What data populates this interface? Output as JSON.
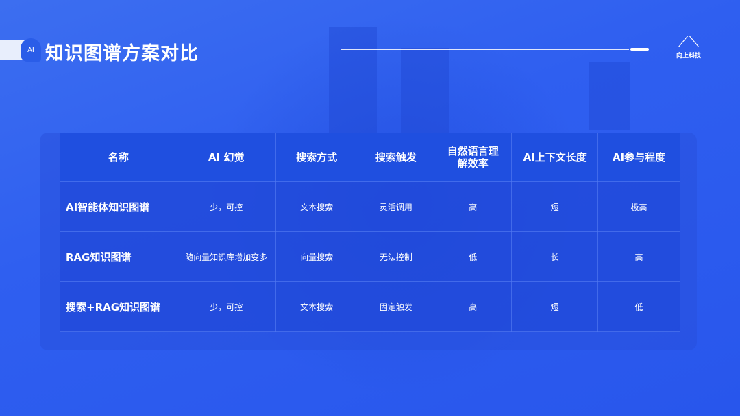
{
  "header": {
    "title": "知识图谱方案对比",
    "icon_text": "AI"
  },
  "logo": {
    "text": "向上科技"
  },
  "table": {
    "columns": [
      "名称",
      "AI 幻觉",
      "搜索方式",
      "搜索触发",
      "自然语言理解效率",
      "AI上下文长度",
      "AI参与程度"
    ],
    "rows": [
      [
        "AI智能体知识图谱",
        "少，可控",
        "文本搜索",
        "灵活调用",
        "高",
        "短",
        "极高"
      ],
      [
        "RAG知识图谱",
        "随向量知识库增加变多",
        "向量搜索",
        "无法控制",
        "低",
        "长",
        "高"
      ],
      [
        "搜索+RAG知识图谱",
        "少，可控",
        "文本搜索",
        "固定触发",
        "高",
        "短",
        "低"
      ]
    ]
  }
}
